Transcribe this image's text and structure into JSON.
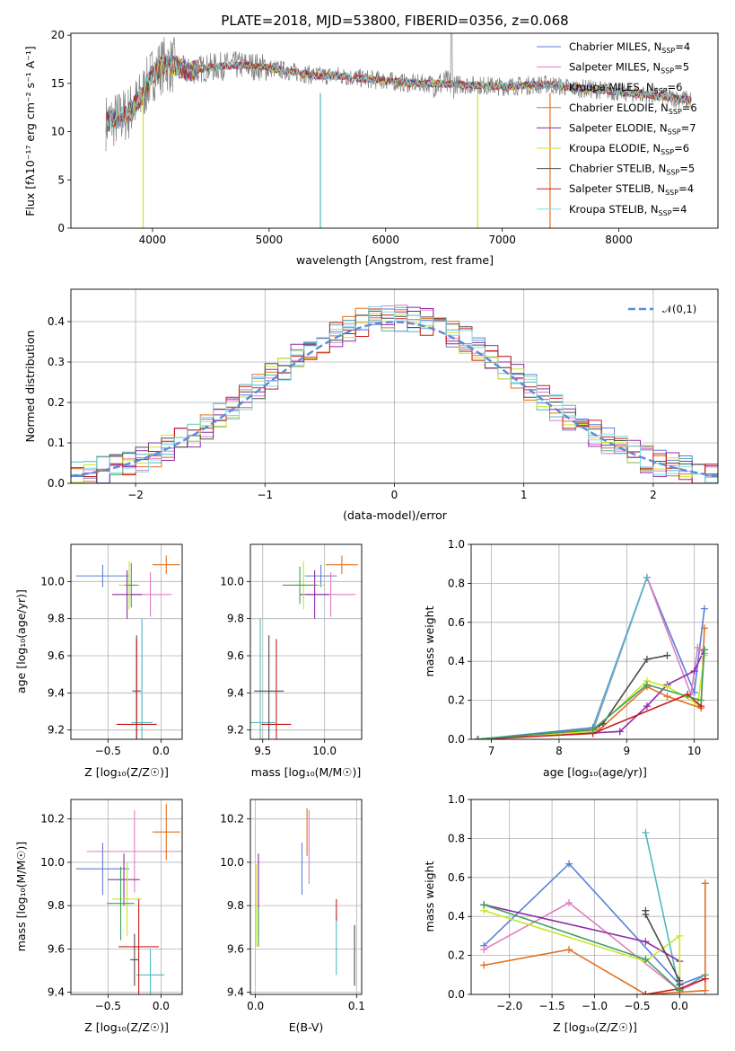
{
  "chart_data": [
    {
      "type": "line",
      "title": "PLATE=2018, MJD=53800, FIBERID=0356, z=0.068",
      "xlabel": "wavelength [Angstrom, rest frame]",
      "ylabel": "Flux [fλ10⁻¹⁷ erg cm⁻² s⁻¹ A⁻¹]",
      "xlim": [
        3300,
        8850
      ],
      "ylim": [
        0,
        20.2
      ],
      "xticks": [
        4000,
        5000,
        6000,
        7000,
        8000
      ],
      "yticks": [
        0,
        5,
        10,
        15,
        20
      ],
      "legend_position": "right",
      "grid": false,
      "data_color": "#808080",
      "series": [
        {
          "name": "Chabrier MILES, N_SSP=4",
          "label_main": "Chabrier MILES, N",
          "label_sub": "SSP",
          "label_tail": "=4",
          "color": "#5b7fd9"
        },
        {
          "name": "Salpeter MILES, N_SSP=5",
          "label_main": "Salpeter MILES, N",
          "label_sub": "SSP",
          "label_tail": "=5",
          "color": "#e07ec2"
        },
        {
          "name": "Kroupa MILES, N_SSP=6",
          "label_main": "Kroupa MILES, N",
          "label_sub": "SSP",
          "label_tail": "=6",
          "color": "#50b8c0"
        },
        {
          "name": "Chabrier ELODIE, N_SSP=6",
          "label_main": "Chabrier ELODIE, N",
          "label_sub": "SSP",
          "label_tail": "=6",
          "color": "#e07020"
        },
        {
          "name": "Salpeter ELODIE, N_SSP=7",
          "label_main": "Salpeter ELODIE, N",
          "label_sub": "SSP",
          "label_tail": "=7",
          "color": "#8e2aa8"
        },
        {
          "name": "Kroupa ELODIE, N_SSP=6",
          "label_main": "Kroupa ELODIE, N",
          "label_sub": "SSP",
          "label_tail": "=6",
          "color": "#c8e62a"
        },
        {
          "name": "Chabrier STELIB, N_SSP=5",
          "label_main": "Chabrier STELIB, N",
          "label_sub": "SSP",
          "label_tail": "=5",
          "color": "#4d4d4d"
        },
        {
          "name": "Salpeter STELIB, N_SSP=4",
          "label_main": "Salpeter STELIB, N",
          "label_sub": "SSP",
          "label_tail": "=4",
          "color": "#c81e1e"
        },
        {
          "name": "Kroupa STELIB, N_SSP=4",
          "label_main": "Kroupa STELIB, N",
          "label_sub": "SSP",
          "label_tail": "=4",
          "color": "#7fdce6"
        }
      ],
      "spectrum_approx": {
        "wavelength": [
          3600,
          3700,
          3800,
          3900,
          4000,
          4100,
          4200,
          4300,
          4400,
          4600,
          4800,
          5000,
          5200,
          5400,
          5600,
          5800,
          6000,
          6200,
          6400,
          6600,
          6800,
          7000,
          7200,
          7400,
          7600,
          7800,
          8000,
          8200,
          8400,
          8600
        ],
        "flux": [
          11.0,
          11.3,
          12.0,
          13.5,
          16.0,
          17.0,
          16.8,
          16.2,
          16.5,
          16.8,
          16.9,
          16.6,
          16.2,
          15.8,
          15.8,
          15.5,
          15.3,
          15.0,
          15.0,
          14.9,
          14.8,
          14.7,
          14.8,
          14.9,
          14.5,
          14.4,
          14.1,
          13.9,
          13.6,
          13.3
        ]
      }
    },
    {
      "type": "step",
      "xlabel": "(data-model)/error",
      "ylabel": "Normed distribution",
      "xlim": [
        -2.5,
        2.5
      ],
      "ylim": [
        0,
        0.48
      ],
      "xticks": [
        -2,
        -1,
        0,
        1,
        2
      ],
      "yticks": [
        0.0,
        0.1,
        0.2,
        0.3,
        0.4
      ],
      "grid": true,
      "legend": "𝒩(0,1)",
      "gaussian_color": "#5b8bd9",
      "bin_width": 0.1
    },
    {
      "type": "scatter",
      "xlabel": "Z [log₁₀(Z/Z☉)]",
      "ylabel": "age  [log₁₀(age/yr)]",
      "xlim": [
        -0.85,
        0.2
      ],
      "ylim": [
        9.15,
        10.2
      ],
      "xticks": [
        -0.5,
        0.0
      ],
      "yticks": [
        9.2,
        9.4,
        9.6,
        9.8,
        10.0
      ],
      "grid": true,
      "points": [
        {
          "x": -0.55,
          "xerr": 0.25,
          "y": 10.03,
          "yerr": 0.06,
          "color": "#5b7fd9"
        },
        {
          "x": -0.1,
          "xerr": 0.2,
          "y": 9.93,
          "yerr": 0.12,
          "color": "#e07ec2"
        },
        {
          "x": -0.18,
          "xerr": 0.1,
          "y": 9.24,
          "yerr": 0.56,
          "color": "#50b8c0"
        },
        {
          "x": 0.05,
          "xerr": 0.13,
          "y": 10.09,
          "yerr": 0.05,
          "color": "#e07020"
        },
        {
          "x": -0.32,
          "xerr": 0.14,
          "y": 9.93,
          "yerr": 0.13,
          "color": "#8e2aa8"
        },
        {
          "x": -0.3,
          "xerr": 0.1,
          "y": 9.98,
          "yerr": 0.13,
          "color": "#c8e62a"
        },
        {
          "x": -0.23,
          "xerr": 0.04,
          "y": 9.41,
          "yerr": 0.3,
          "color": "#4d4d4d"
        },
        {
          "x": -0.23,
          "xerr": 0.19,
          "y": 9.23,
          "yerr": 0.46,
          "color": "#c81e1e"
        },
        {
          "x": -0.28,
          "xerr": 0.06,
          "y": 9.98,
          "yerr": 0.12,
          "color": "#40a060"
        }
      ]
    },
    {
      "type": "scatter",
      "xlabel": "mass [log₁₀(M/M☉)]",
      "xlim": [
        9.4,
        10.3
      ],
      "ylim": [
        9.15,
        10.2
      ],
      "xticks": [
        9.5,
        10.0
      ],
      "yticks": [
        9.2,
        9.4,
        9.6,
        9.8,
        10.0
      ],
      "grid": true,
      "points": [
        {
          "x": 9.97,
          "xerr": 0.13,
          "y": 10.03,
          "yerr": 0.06,
          "color": "#5b7fd9"
        },
        {
          "x": 10.05,
          "xerr": 0.2,
          "y": 9.93,
          "yerr": 0.12,
          "color": "#e07ec2"
        },
        {
          "x": 9.48,
          "xerr": 0.12,
          "y": 9.24,
          "yerr": 0.56,
          "color": "#50b8c0"
        },
        {
          "x": 10.14,
          "xerr": 0.13,
          "y": 10.09,
          "yerr": 0.05,
          "color": "#e07020"
        },
        {
          "x": 9.92,
          "xerr": 0.12,
          "y": 9.93,
          "yerr": 0.13,
          "color": "#8e2aa8"
        },
        {
          "x": 9.83,
          "xerr": 0.17,
          "y": 9.98,
          "yerr": 0.13,
          "color": "#c8e62a"
        },
        {
          "x": 9.55,
          "xerr": 0.12,
          "y": 9.41,
          "yerr": 0.3,
          "color": "#4d4d4d"
        },
        {
          "x": 9.61,
          "xerr": 0.12,
          "y": 9.23,
          "yerr": 0.46,
          "color": "#c81e1e"
        },
        {
          "x": 9.8,
          "xerr": 0.14,
          "y": 9.98,
          "yerr": 0.1,
          "color": "#40a060"
        }
      ]
    },
    {
      "type": "line",
      "xlabel": "age  [log₁₀(age/yr)]",
      "ylabel": "mass weight",
      "xlim": [
        6.7,
        10.35
      ],
      "ylim": [
        0,
        1.0
      ],
      "xticks": [
        7,
        8,
        9,
        10
      ],
      "yticks": [
        0.0,
        0.2,
        0.4,
        0.6,
        0.8,
        1.0
      ],
      "grid": true,
      "series": [
        {
          "color": "#5b7fd9",
          "x": [
            6.8,
            8.5,
            9.3,
            10.0,
            10.15
          ],
          "y": [
            0.0,
            0.06,
            0.83,
            0.24,
            0.67
          ]
        },
        {
          "color": "#e07ec2",
          "x": [
            6.8,
            8.5,
            9.3,
            9.95,
            10.05,
            10.15
          ],
          "y": [
            0.0,
            0.04,
            0.83,
            0.23,
            0.47,
            0.44
          ]
        },
        {
          "color": "#50b8c0",
          "x": [
            6.8,
            8.5,
            9.3
          ],
          "y": [
            0.0,
            0.05,
            0.83
          ]
        },
        {
          "color": "#e07020",
          "x": [
            6.8,
            8.6,
            9.3,
            9.6,
            10.1,
            10.15
          ],
          "y": [
            0.0,
            0.05,
            0.27,
            0.22,
            0.16,
            0.57
          ]
        },
        {
          "color": "#8e2aa8",
          "x": [
            6.8,
            8.9,
            9.3,
            9.6,
            10.0,
            10.15
          ],
          "y": [
            0.0,
            0.04,
            0.17,
            0.28,
            0.35,
            0.46
          ]
        },
        {
          "color": "#c8e62a",
          "x": [
            6.8,
            8.5,
            9.3,
            9.6,
            10.05,
            10.15
          ],
          "y": [
            0.0,
            0.04,
            0.3,
            0.27,
            0.18,
            0.43
          ]
        },
        {
          "color": "#4d4d4d",
          "x": [
            6.8,
            8.5,
            8.65,
            9.3,
            9.6
          ],
          "y": [
            0.0,
            0.05,
            0.08,
            0.41,
            0.43
          ]
        },
        {
          "color": "#c81e1e",
          "x": [
            6.8,
            8.5,
            9.9,
            10.1
          ],
          "y": [
            0.0,
            0.03,
            0.23,
            0.17
          ]
        },
        {
          "color": "#40a060",
          "x": [
            6.8,
            8.5,
            9.3,
            10.1,
            10.15
          ],
          "y": [
            0.0,
            0.05,
            0.28,
            0.2,
            0.46
          ]
        }
      ]
    },
    {
      "type": "scatter",
      "xlabel": "Z [log₁₀(Z/Z☉)]",
      "ylabel": "mass [log₁₀(M/M☉)]",
      "xlim": [
        -0.85,
        0.2
      ],
      "ylim": [
        9.39,
        10.29
      ],
      "xticks": [
        -0.5,
        0.0
      ],
      "yticks": [
        9.4,
        9.6,
        9.8,
        10.0,
        10.2
      ],
      "grid": true,
      "points": [
        {
          "x": -0.55,
          "xerr": 0.25,
          "y": 9.97,
          "yerr": 0.12,
          "color": "#5b7fd9"
        },
        {
          "x": -0.25,
          "xerr": 0.45,
          "y": 10.05,
          "yerr": 0.19,
          "color": "#e07ec2"
        },
        {
          "x": -0.1,
          "xerr": 0.13,
          "y": 9.48,
          "yerr": 0.12,
          "color": "#50b8c0"
        },
        {
          "x": 0.05,
          "xerr": 0.13,
          "y": 10.14,
          "yerr": 0.13,
          "color": "#e07020"
        },
        {
          "x": -0.35,
          "xerr": 0.15,
          "y": 9.92,
          "yerr": 0.12,
          "color": "#8e2aa8"
        },
        {
          "x": -0.32,
          "xerr": 0.14,
          "y": 9.83,
          "yerr": 0.17,
          "color": "#c8e62a"
        },
        {
          "x": -0.25,
          "xerr": 0.04,
          "y": 9.55,
          "yerr": 0.12,
          "color": "#4d4d4d"
        },
        {
          "x": -0.21,
          "xerr": 0.19,
          "y": 9.61,
          "yerr": 0.22,
          "color": "#c81e1e"
        },
        {
          "x": -0.38,
          "xerr": 0.13,
          "y": 9.81,
          "yerr": 0.17,
          "color": "#40a060"
        }
      ]
    },
    {
      "type": "scatter",
      "xlabel": "E(B-V)",
      "xlim": [
        -0.005,
        0.105
      ],
      "ylim": [
        9.39,
        10.29
      ],
      "xticks": [
        0.0,
        0.1
      ],
      "yticks": [
        9.4,
        9.6,
        9.8,
        10.0,
        10.2
      ],
      "grid": true,
      "points": [
        {
          "x": 0.046,
          "y": 9.97,
          "yerr": 0.12,
          "color": "#5b7fd9"
        },
        {
          "x": 0.053,
          "y": 10.07,
          "yerr": 0.17,
          "color": "#e07ec2"
        },
        {
          "x": 0.08,
          "y": 9.62,
          "yerr": 0.14,
          "color": "#50b8c0"
        },
        {
          "x": 0.051,
          "y": 10.14,
          "yerr": 0.11,
          "color": "#e07020"
        },
        {
          "x": 0.003,
          "y": 9.85,
          "yerr": 0.19,
          "color": "#8e2aa8"
        },
        {
          "x": 0.001,
          "y": 9.8,
          "yerr": 0.19,
          "color": "#c8e62a"
        },
        {
          "x": 0.098,
          "y": 9.57,
          "yerr": 0.14,
          "color": "#4d4d4d"
        },
        {
          "x": 0.08,
          "y": 9.78,
          "yerr": 0.05,
          "color": "#c81e1e"
        },
        {
          "x": 0.003,
          "y": 9.7,
          "yerr": 0.09,
          "color": "#40a060"
        }
      ]
    },
    {
      "type": "line",
      "xlabel": "Z [log₁₀(Z/Z☉)]",
      "ylabel": "mass weight",
      "xlim": [
        -2.45,
        0.45
      ],
      "ylim": [
        0,
        1.0
      ],
      "xticks": [
        -2.0,
        -1.5,
        -1.0,
        -0.5,
        0.0
      ],
      "yticks": [
        0.0,
        0.2,
        0.4,
        0.6,
        0.8,
        1.0
      ],
      "grid": true,
      "series": [
        {
          "color": "#5b7fd9",
          "x": [
            -2.3,
            -1.3,
            0.0,
            0.3
          ],
          "y": [
            0.25,
            0.67,
            0.05,
            0.1
          ]
        },
        {
          "color": "#e07ec2",
          "x": [
            -2.3,
            -1.3,
            0.0,
            0.3
          ],
          "y": [
            0.23,
            0.47,
            0.02,
            0.08
          ]
        },
        {
          "color": "#50b8c0",
          "x": [
            -0.4,
            0.0,
            0.3
          ],
          "y": [
            0.83,
            0.02,
            0.1
          ]
        },
        {
          "color": "#e07020",
          "x": [
            -2.3,
            -1.3,
            -0.4,
            0.3,
            0.3
          ],
          "y": [
            0.15,
            0.23,
            0.0,
            0.02,
            0.57
          ]
        },
        {
          "color": "#8e2aa8",
          "x": [
            -2.3,
            -0.4,
            0.0,
            0.0
          ],
          "y": [
            0.46,
            0.27,
            0.17,
            0.03
          ]
        },
        {
          "color": "#c8e62a",
          "x": [
            -2.3,
            -0.4,
            0.0,
            0.0
          ],
          "y": [
            0.43,
            0.17,
            0.3,
            0.03
          ]
        },
        {
          "color": "#4d4d4d",
          "x": [
            -0.4,
            -0.4,
            0.0,
            0.0
          ],
          "y": [
            0.43,
            0.41,
            0.07,
            0.05
          ]
        },
        {
          "color": "#c81e1e",
          "x": [
            -0.4,
            0.0,
            0.3
          ],
          "y": [
            0.0,
            0.03,
            0.08
          ]
        },
        {
          "color": "#40a060",
          "x": [
            -2.3,
            -0.4,
            0.0
          ],
          "y": [
            0.46,
            0.18,
            0.02
          ]
        }
      ]
    }
  ]
}
